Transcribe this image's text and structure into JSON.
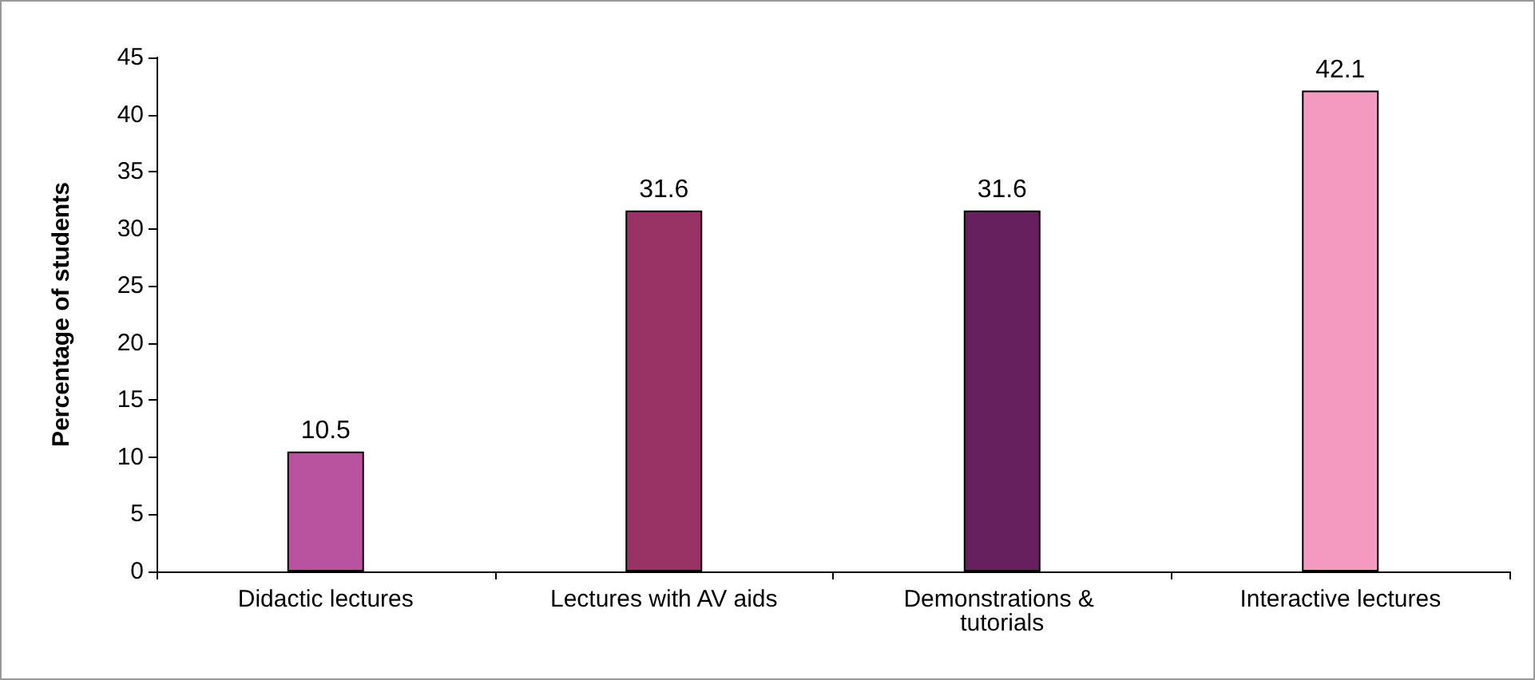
{
  "chart_data": {
    "type": "bar",
    "ylabel": "Percentage of students",
    "categories": [
      "Didactic lectures",
      "Lectures with AV aids",
      "Demonstrations & tutorials",
      "Interactive lectures"
    ],
    "values": [
      10.5,
      31.6,
      31.6,
      42.1
    ],
    "colors": [
      "#b9529f",
      "#993366",
      "#66205e",
      "#f49ac1"
    ],
    "ylim": [
      0,
      45
    ],
    "yticks": [
      0,
      5,
      10,
      15,
      20,
      25,
      30,
      35,
      40,
      45
    ],
    "grid": false,
    "data_labels": true
  }
}
